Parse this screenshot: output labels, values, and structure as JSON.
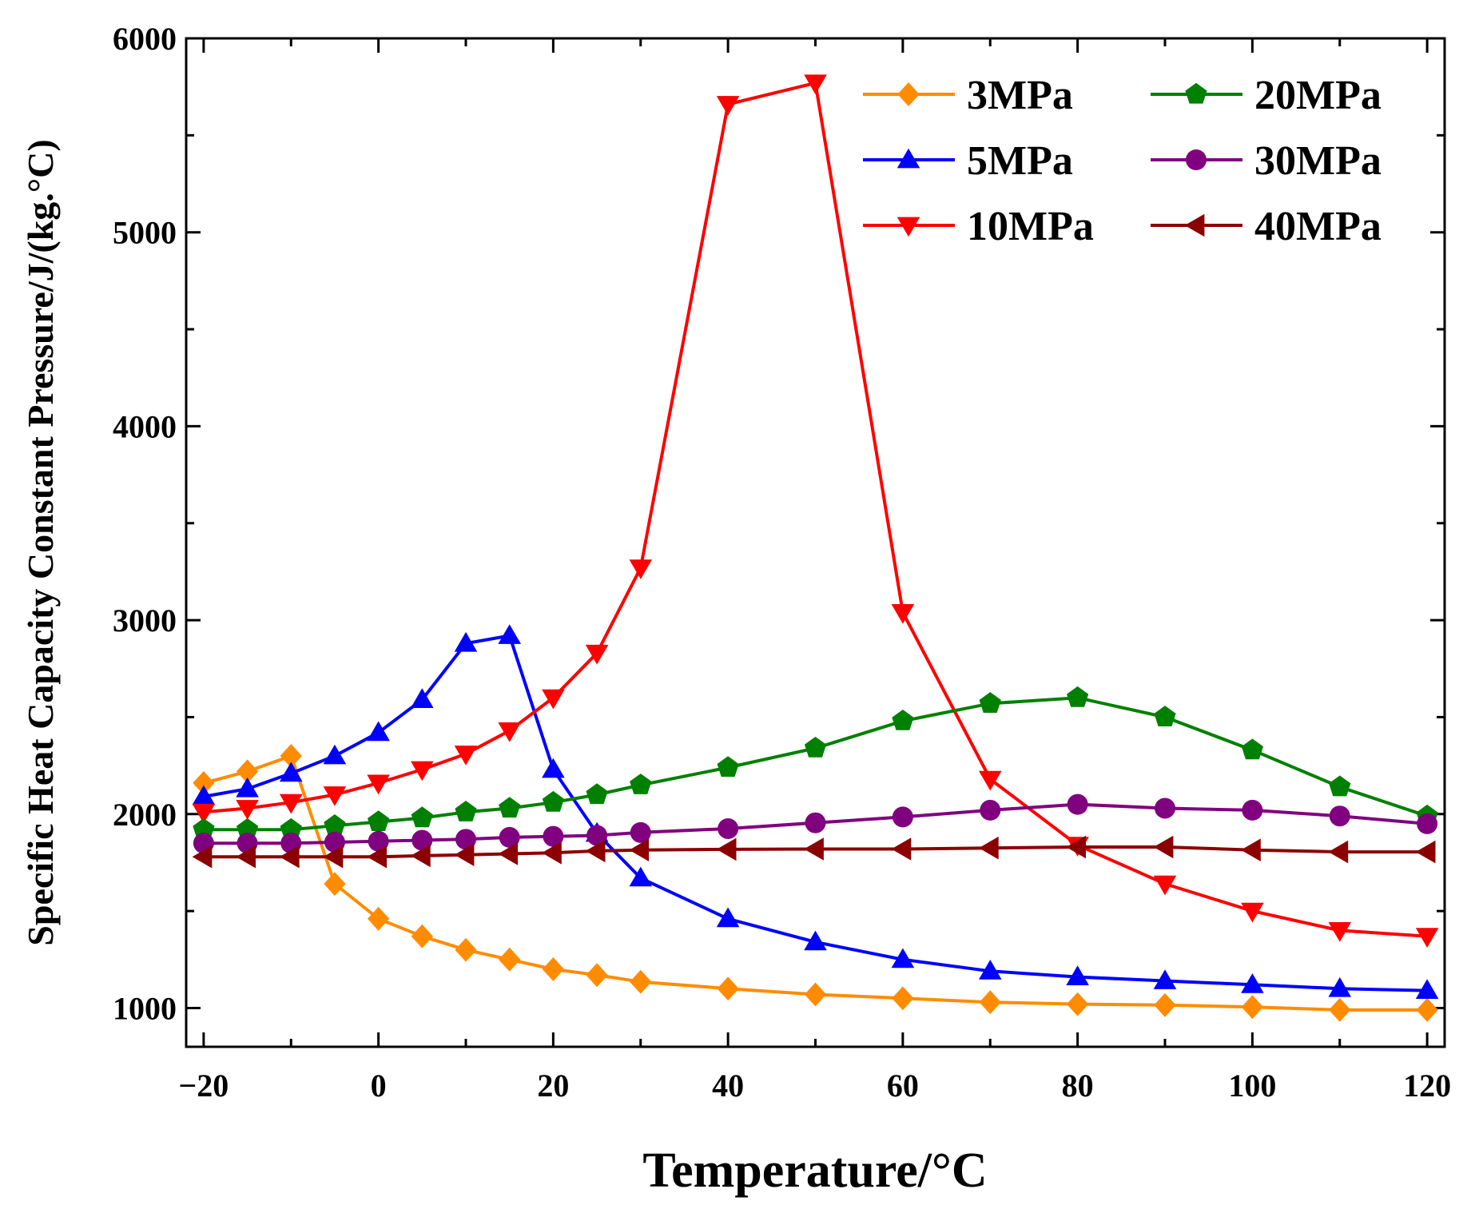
{
  "chart_data": {
    "type": "line",
    "title": "",
    "xlabel": "Temperature/°C",
    "ylabel": "Specific Heat Capacity Constant Pressure/J/(kg.°C)",
    "xlim": [
      -22,
      122
    ],
    "ylim": [
      800,
      6000
    ],
    "xticks": [
      -20,
      0,
      20,
      40,
      60,
      80,
      100,
      120
    ],
    "xtick_labels": [
      "−20",
      "0",
      "20",
      "40",
      "60",
      "80",
      "100",
      "120"
    ],
    "yticks": [
      1000,
      2000,
      3000,
      4000,
      5000,
      6000
    ],
    "ytick_labels": [
      "1000",
      "2000",
      "3000",
      "4000",
      "5000",
      "6000"
    ],
    "grid": false,
    "legend_position": "top-right",
    "x": [
      -20,
      -15,
      -10,
      -5,
      0,
      5,
      10,
      15,
      20,
      25,
      30,
      40,
      50,
      60,
      70,
      80,
      90,
      100,
      110,
      120
    ],
    "series": [
      {
        "name": "3MPa",
        "color": "#FF8C00",
        "marker": "diamond",
        "values": [
          2160,
          2220,
          2300,
          1640,
          1460,
          1370,
          1300,
          1250,
          1200,
          1170,
          1135,
          1100,
          1070,
          1050,
          1030,
          1020,
          1015,
          1005,
          990,
          990
        ]
      },
      {
        "name": "5MPa",
        "color": "#0000FF",
        "marker": "triangle-up",
        "values": [
          2090,
          2130,
          2210,
          2300,
          2420,
          2590,
          2880,
          2920,
          2230,
          1900,
          1670,
          1460,
          1340,
          1250,
          1190,
          1160,
          1140,
          1120,
          1100,
          1090
        ]
      },
      {
        "name": "10MPa",
        "color": "#FF0000",
        "marker": "triangle-down",
        "values": [
          2010,
          2030,
          2060,
          2100,
          2160,
          2230,
          2310,
          2430,
          2600,
          2830,
          3270,
          5660,
          5770,
          3040,
          2180,
          1840,
          1640,
          1500,
          1400,
          1370
        ]
      },
      {
        "name": "20MPa",
        "color": "#008000",
        "marker": "pentagon",
        "values": [
          1920,
          1920,
          1920,
          1940,
          1960,
          1980,
          2010,
          2030,
          2060,
          2100,
          2150,
          2240,
          2340,
          2480,
          2570,
          2600,
          2500,
          2330,
          2140,
          1990
        ]
      },
      {
        "name": "30MPa",
        "color": "#800080",
        "marker": "circle",
        "values": [
          1850,
          1850,
          1850,
          1855,
          1860,
          1865,
          1870,
          1880,
          1885,
          1890,
          1905,
          1925,
          1955,
          1985,
          2020,
          2050,
          2030,
          2020,
          1990,
          1950
        ]
      },
      {
        "name": "40MPa",
        "color": "#8B0000",
        "marker": "triangle-left",
        "values": [
          1780,
          1780,
          1780,
          1780,
          1780,
          1785,
          1790,
          1795,
          1800,
          1810,
          1815,
          1818,
          1820,
          1820,
          1825,
          1830,
          1830,
          1815,
          1805,
          1805
        ]
      }
    ]
  }
}
